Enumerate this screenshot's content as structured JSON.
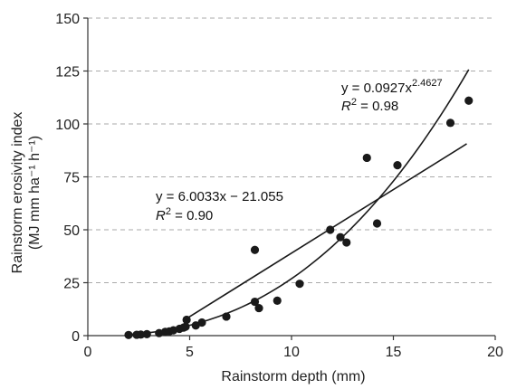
{
  "chart_data": {
    "type": "scatter",
    "title": "",
    "xlabel": "Rainstorm depth (mm)",
    "ylabel_line1": "Rainstorm erosivity index",
    "ylabel_line2": "(MJ mm ha⁻¹ h⁻¹)",
    "xlim": [
      0,
      20
    ],
    "ylim": [
      0,
      150
    ],
    "xticks": [
      0,
      5,
      10,
      15,
      20
    ],
    "yticks": [
      0,
      25,
      50,
      75,
      100,
      125,
      150
    ],
    "grid": "horizontal-dashed",
    "legend": "none",
    "points": [
      {
        "x": 2.0,
        "y": 0.3
      },
      {
        "x": 2.4,
        "y": 0.4
      },
      {
        "x": 2.6,
        "y": 0.5
      },
      {
        "x": 2.9,
        "y": 0.7
      },
      {
        "x": 3.5,
        "y": 1.2
      },
      {
        "x": 3.8,
        "y": 1.8
      },
      {
        "x": 4.0,
        "y": 2.0
      },
      {
        "x": 4.2,
        "y": 2.5
      },
      {
        "x": 4.5,
        "y": 3.2
      },
      {
        "x": 4.7,
        "y": 3.8
      },
      {
        "x": 4.8,
        "y": 4.2
      },
      {
        "x": 4.85,
        "y": 7.5
      },
      {
        "x": 5.3,
        "y": 4.8
      },
      {
        "x": 5.6,
        "y": 6.2
      },
      {
        "x": 6.8,
        "y": 9.0
      },
      {
        "x": 8.2,
        "y": 40.5
      },
      {
        "x": 8.2,
        "y": 16.0
      },
      {
        "x": 8.4,
        "y": 13.0
      },
      {
        "x": 9.3,
        "y": 16.5
      },
      {
        "x": 10.4,
        "y": 24.5
      },
      {
        "x": 11.9,
        "y": 50.0
      },
      {
        "x": 12.4,
        "y": 46.5
      },
      {
        "x": 12.7,
        "y": 44.0
      },
      {
        "x": 13.7,
        "y": 84.0
      },
      {
        "x": 14.2,
        "y": 53.0
      },
      {
        "x": 15.2,
        "y": 80.5
      },
      {
        "x": 17.8,
        "y": 100.5
      },
      {
        "x": 18.7,
        "y": 111.0
      }
    ],
    "fits": [
      {
        "kind": "linear",
        "slope": 6.0033,
        "intercept": -21.055,
        "x_range": [
          4.8,
          18.6
        ],
        "eq_prefix": "y = 6.0033x − 21.055",
        "r2_value": " = 0.90"
      },
      {
        "kind": "power",
        "coef": 0.0927,
        "exponent": 2.4627,
        "x_range": [
          2.0,
          18.7
        ],
        "eq_prefix": "y = 0.0927x",
        "eq_sup": "2.4627",
        "r2_value": " = 0.98"
      }
    ],
    "r2_symbol": "R",
    "r2_sup": "2",
    "colors": {
      "marker": "#1a1a1a",
      "line": "#1a1a1a",
      "grid": "#aaaaaa",
      "axis": "#333333"
    }
  }
}
